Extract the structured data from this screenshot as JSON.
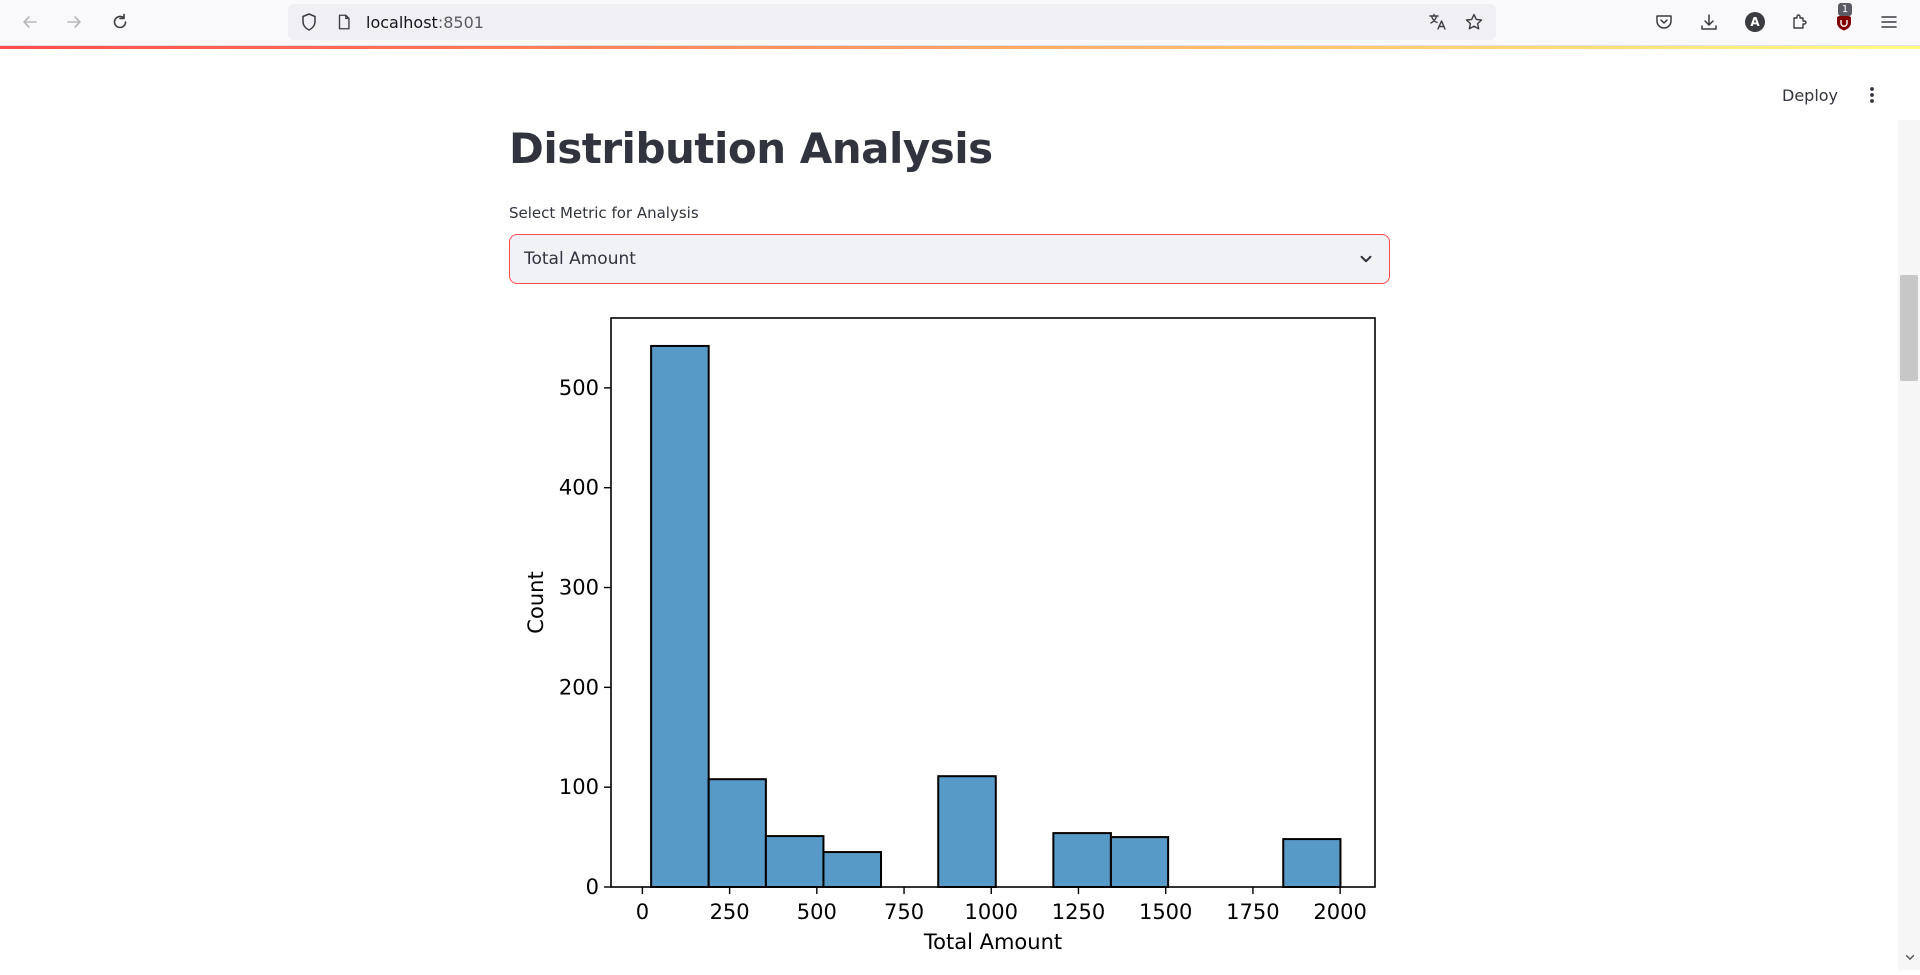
{
  "browser": {
    "url_host": "localhost",
    "url_port": ":8501",
    "extension_badge": "1",
    "account_initial": "A"
  },
  "app": {
    "deploy_label": "Deploy",
    "title": "Distribution Analysis",
    "select": {
      "label": "Select Metric for Analysis",
      "value": "Total Amount"
    },
    "accent_color": "#ff4b4b"
  },
  "chart_data": {
    "type": "bar",
    "xlabel": "Total Amount",
    "ylabel": "Count",
    "xlim": [
      -90,
      2100
    ],
    "ylim": [
      0,
      570
    ],
    "xticks": [
      0,
      250,
      500,
      750,
      1000,
      1250,
      1500,
      1750,
      2000
    ],
    "yticks": [
      0,
      100,
      200,
      300,
      400,
      500
    ],
    "bar_color": "#5799c7",
    "edge_color": "#000000",
    "bins": [
      {
        "start": 25,
        "end": 190,
        "count": 542
      },
      {
        "start": 190,
        "end": 354,
        "count": 108
      },
      {
        "start": 354,
        "end": 519,
        "count": 51
      },
      {
        "start": 519,
        "end": 684,
        "count": 35
      },
      {
        "start": 684,
        "end": 848,
        "count": 0
      },
      {
        "start": 848,
        "end": 1013,
        "count": 111
      },
      {
        "start": 1013,
        "end": 1178,
        "count": 0
      },
      {
        "start": 1178,
        "end": 1343,
        "count": 54
      },
      {
        "start": 1343,
        "end": 1507,
        "count": 50
      },
      {
        "start": 1507,
        "end": 1672,
        "count": 0
      },
      {
        "start": 1672,
        "end": 1837,
        "count": 0
      },
      {
        "start": 1837,
        "end": 2001,
        "count": 48
      }
    ]
  }
}
